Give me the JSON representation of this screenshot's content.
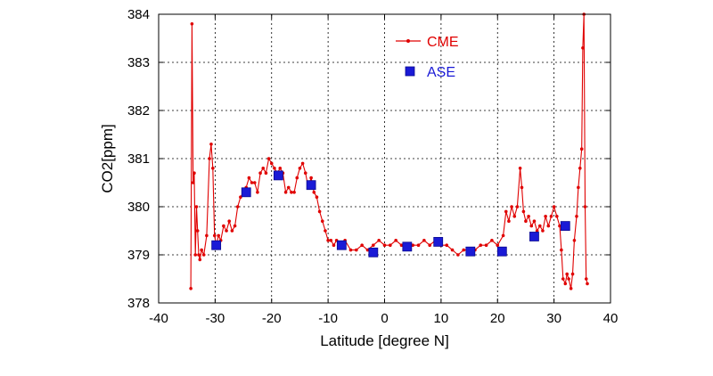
{
  "chart_data": {
    "type": "line",
    "xlabel": "Latitude [degree N]",
    "ylabel": "CO2[ppm]",
    "xlim": [
      -40,
      40
    ],
    "ylim": [
      378,
      384
    ],
    "xticks": [
      "-40",
      "-30",
      "-20",
      "-10",
      "0",
      "10",
      "20",
      "30",
      "40"
    ],
    "yticks": [
      "378",
      "379",
      "380",
      "381",
      "382",
      "383",
      "384"
    ],
    "grid": true,
    "legend_position": "top-right",
    "colors": {
      "CME": "#e00000",
      "ASE": "#1a1ad6"
    },
    "series": [
      {
        "name": "CME",
        "marker": "dot-line",
        "x": [
          -34.3,
          -34.1,
          -33.9,
          -33.7,
          -33.5,
          -33.3,
          -33.1,
          -32.9,
          -32.7,
          -32.4,
          -32.0,
          -31.5,
          -31.0,
          -30.7,
          -30.4,
          -30.1,
          -29.8,
          -29.4,
          -29.0,
          -28.5,
          -28.0,
          -27.5,
          -27.0,
          -26.5,
          -26.0,
          -25.5,
          -25.0,
          -24.5,
          -24.0,
          -23.5,
          -23.0,
          -22.5,
          -22.0,
          -21.5,
          -21.0,
          -20.5,
          -20.0,
          -19.5,
          -19.0,
          -18.5,
          -18.0,
          -17.5,
          -17.0,
          -16.5,
          -16.0,
          -15.5,
          -15.0,
          -14.5,
          -14.0,
          -13.5,
          -13.0,
          -12.5,
          -12.0,
          -11.5,
          -11.0,
          -10.5,
          -10.0,
          -9.5,
          -9.0,
          -8.5,
          -8.0,
          -7.5,
          -7.0,
          -6.0,
          -5.0,
          -4.0,
          -3.0,
          -2.0,
          -1.0,
          0.0,
          1.0,
          2.0,
          3.0,
          4.0,
          5.0,
          6.0,
          7.0,
          8.0,
          9.0,
          10.0,
          11.0,
          12.0,
          13.0,
          14.0,
          15.0,
          16.0,
          17.0,
          18.0,
          19.0,
          20.0,
          21.0,
          21.5,
          22.0,
          22.5,
          23.0,
          23.5,
          24.0,
          24.3,
          24.6,
          25.0,
          25.5,
          26.0,
          26.5,
          27.0,
          27.5,
          28.0,
          28.5,
          29.0,
          29.5,
          30.0,
          30.5,
          31.0,
          31.3,
          31.6,
          32.0,
          32.3,
          32.6,
          33.0,
          33.3,
          33.6,
          34.0,
          34.3,
          34.6,
          34.9,
          35.1,
          35.3,
          35.5,
          35.7,
          35.9
        ],
        "values": [
          378.3,
          383.8,
          380.5,
          380.7,
          379.0,
          380.0,
          379.5,
          379.0,
          378.9,
          379.1,
          379.0,
          379.4,
          381.0,
          381.3,
          380.8,
          379.4,
          379.2,
          379.4,
          379.3,
          379.6,
          379.5,
          379.7,
          379.5,
          379.6,
          380.0,
          380.2,
          380.3,
          380.4,
          380.6,
          380.5,
          380.5,
          380.3,
          380.7,
          380.8,
          380.7,
          381.0,
          380.9,
          380.8,
          380.7,
          380.8,
          380.7,
          380.3,
          380.4,
          380.3,
          380.3,
          380.6,
          380.8,
          380.9,
          380.7,
          380.4,
          380.6,
          380.3,
          380.2,
          379.9,
          379.7,
          379.5,
          379.3,
          379.3,
          379.2,
          379.3,
          379.2,
          379.2,
          379.3,
          379.1,
          379.1,
          379.2,
          379.1,
          379.2,
          379.3,
          379.2,
          379.2,
          379.3,
          379.2,
          379.2,
          379.2,
          379.2,
          379.3,
          379.2,
          379.3,
          379.2,
          379.2,
          379.1,
          379.0,
          379.1,
          379.1,
          379.1,
          379.2,
          379.2,
          379.3,
          379.2,
          379.4,
          379.9,
          379.7,
          380.0,
          379.8,
          380.0,
          380.8,
          380.4,
          379.9,
          379.7,
          379.8,
          379.6,
          379.7,
          379.5,
          379.6,
          379.5,
          379.8,
          379.6,
          379.8,
          380.0,
          379.8,
          379.6,
          379.1,
          378.5,
          378.4,
          378.6,
          378.5,
          378.3,
          378.6,
          379.3,
          379.8,
          380.4,
          380.8,
          381.2,
          383.3,
          384.0,
          380.0,
          378.5,
          378.4
        ],
        "hide_legend": false
      },
      {
        "name": "ASE",
        "marker": "square",
        "x": [
          -29.8,
          -24.5,
          -18.8,
          -13.0,
          -7.6,
          -2.0,
          4.0,
          9.5,
          15.2,
          20.8,
          26.5,
          32.0
        ],
        "values": [
          379.2,
          380.3,
          380.65,
          380.45,
          379.2,
          379.05,
          379.17,
          379.27,
          379.07,
          379.07,
          379.38,
          379.6
        ]
      }
    ]
  }
}
